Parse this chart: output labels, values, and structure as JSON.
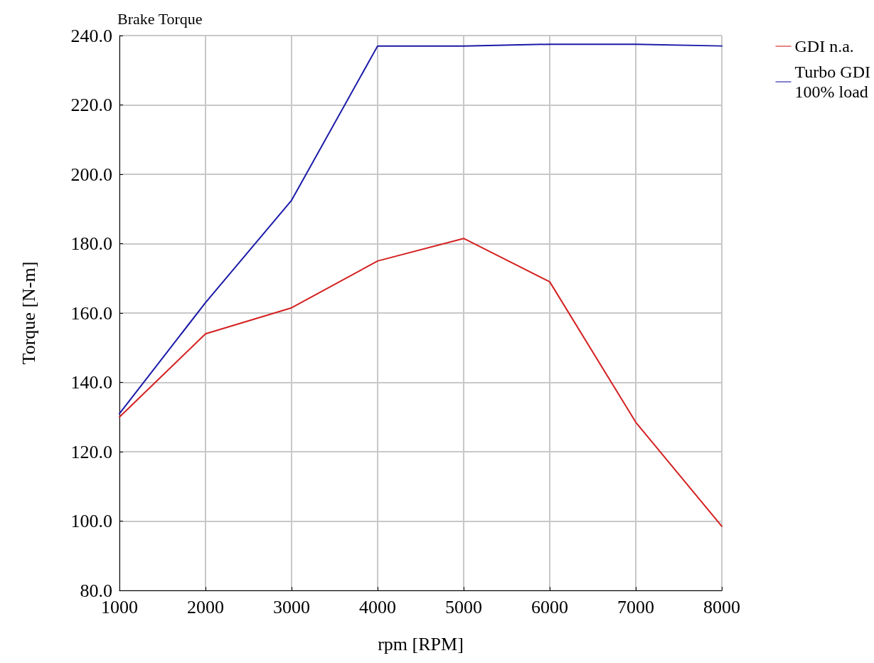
{
  "chart_data": {
    "type": "line",
    "title": "Brake Torque",
    "xlabel": "rpm [RPM]",
    "ylabel": "Torque [N-m]",
    "x": [
      1000,
      2000,
      3000,
      4000,
      5000,
      6000,
      7000,
      8000
    ],
    "series": [
      {
        "name": "GDI n.a.",
        "color": "#d42020",
        "values": [
          130,
          154,
          161.5,
          175,
          181.5,
          169,
          128.5,
          98.5
        ]
      },
      {
        "name": "Turbo GDI\n100% load",
        "color": "#1a1aa8",
        "values": [
          131,
          163,
          192.5,
          237,
          237,
          237.5,
          237.5,
          237
        ]
      }
    ],
    "xlim": [
      1000,
      8000
    ],
    "xticks": [
      1000,
      2000,
      3000,
      4000,
      5000,
      6000,
      7000,
      8000
    ],
    "ylim": [
      80,
      240
    ],
    "yticks": [
      {
        "value": 80,
        "label": "80.0"
      },
      {
        "value": 100,
        "label": "100.0"
      },
      {
        "value": 120,
        "label": "120.0"
      },
      {
        "value": 140,
        "label": "140.0"
      },
      {
        "value": 160,
        "label": "160.0"
      },
      {
        "value": 180,
        "label": "180.0"
      },
      {
        "value": 200,
        "label": "200.0"
      },
      {
        "value": 220,
        "label": "220.0"
      },
      {
        "value": 240,
        "label": "240.0"
      }
    ],
    "grid": true,
    "legend": "top right",
    "marker": "none",
    "line_style": "solid"
  }
}
